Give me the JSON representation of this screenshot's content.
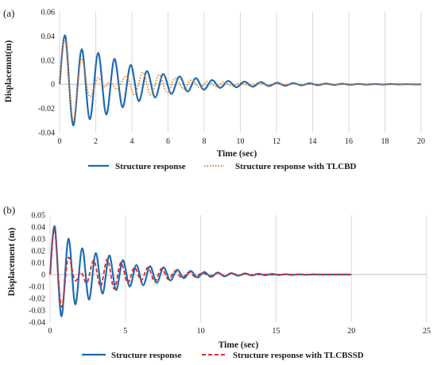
{
  "chart_data": [
    {
      "type": "line",
      "panel_label": "(a)",
      "xlabel": "Time (sec)",
      "ylabel": "Displacemnt(m)",
      "xlim": [
        0,
        20
      ],
      "ylim": [
        -0.04,
        0.06
      ],
      "x_ticks": [
        0,
        2,
        4,
        6,
        8,
        10,
        12,
        14,
        16,
        18,
        20
      ],
      "y_ticks": [
        -0.04,
        -0.02,
        0,
        0.02,
        0.04,
        0.06
      ],
      "y_tick_labels": [
        "-0.04",
        "-0.02",
        "0",
        "0.02",
        "0.04",
        "0.06"
      ],
      "grid": "vertical",
      "legend_position": "bottom",
      "series": [
        {
          "name": "Structure response",
          "color": "#1f6bb4",
          "style": "solid",
          "points": [
            [
              0,
              0
            ],
            [
              0.32,
              0.04
            ],
            [
              0.75,
              -0.034
            ],
            [
              1.22,
              0.029
            ],
            [
              1.67,
              -0.029
            ],
            [
              2.13,
              0.026
            ],
            [
              2.58,
              -0.025
            ],
            [
              3.03,
              0.021
            ],
            [
              3.48,
              -0.019
            ],
            [
              3.93,
              0.016
            ],
            [
              4.38,
              -0.014
            ],
            [
              4.83,
              0.011
            ],
            [
              5.28,
              -0.011
            ],
            [
              5.73,
              0.0085
            ],
            [
              6.18,
              -0.008
            ],
            [
              6.63,
              0.0065
            ],
            [
              7.08,
              -0.006
            ],
            [
              7.53,
              0.005
            ],
            [
              7.98,
              -0.0045
            ],
            [
              8.43,
              0.0035
            ],
            [
              8.88,
              -0.003
            ],
            [
              9.33,
              0.0028
            ],
            [
              9.78,
              -0.0025
            ],
            [
              10.23,
              0.0022
            ],
            [
              10.68,
              -0.002
            ],
            [
              11.13,
              0.0018
            ],
            [
              11.58,
              -0.0015
            ],
            [
              12.03,
              0.0013
            ],
            [
              12.48,
              -0.0012
            ],
            [
              12.93,
              0.001
            ],
            [
              13.38,
              -0.0009
            ],
            [
              13.83,
              0.0008
            ],
            [
              14.28,
              -0.0007
            ],
            [
              14.73,
              0.0006
            ],
            [
              15.18,
              -0.0005
            ],
            [
              15.63,
              0.0004
            ],
            [
              16.08,
              -0.0004
            ],
            [
              16.53,
              0.0003
            ],
            [
              16.98,
              -0.0003
            ],
            [
              17.43,
              0.0002
            ],
            [
              17.88,
              -0.0002
            ],
            [
              18.33,
              0.0002
            ],
            [
              18.78,
              -0.0001
            ],
            [
              19.23,
              0.0001
            ],
            [
              19.68,
              -0.0001
            ],
            [
              20,
              0
            ]
          ]
        },
        {
          "name": "Structure response with TLCBD",
          "color": "#f07c1b",
          "style": "dotted",
          "points": [
            [
              0,
              0
            ],
            [
              0.3,
              0.037
            ],
            [
              0.75,
              -0.03
            ],
            [
              1.2,
              0.021
            ],
            [
              1.65,
              -0.01
            ],
            [
              2.1,
              0.005
            ],
            [
              2.5,
              -0.002
            ],
            [
              2.8,
              0.002
            ],
            [
              3.2,
              -0.004
            ],
            [
              3.7,
              0.007
            ],
            [
              4.15,
              -0.009
            ],
            [
              4.6,
              0.01
            ],
            [
              5.05,
              -0.009
            ],
            [
              5.5,
              0.008
            ],
            [
              5.95,
              -0.007
            ],
            [
              6.4,
              0.005
            ],
            [
              6.85,
              -0.004
            ],
            [
              7.3,
              0.0035
            ],
            [
              7.75,
              -0.003
            ],
            [
              8.2,
              0.0025
            ],
            [
              8.65,
              -0.002
            ],
            [
              9.1,
              0.002
            ],
            [
              9.55,
              -0.0015
            ],
            [
              10.0,
              0.0012
            ],
            [
              10.5,
              -0.001
            ],
            [
              11.0,
              0.0008
            ],
            [
              11.5,
              -0.0006
            ],
            [
              12.0,
              0.0005
            ],
            [
              12.5,
              -0.0004
            ],
            [
              13.0,
              0.0003
            ],
            [
              13.5,
              -0.0002
            ],
            [
              14.0,
              0.0002
            ],
            [
              15.0,
              -0.0001
            ],
            [
              16.0,
              0.0001
            ],
            [
              17.0,
              0
            ],
            [
              20,
              0
            ]
          ]
        }
      ]
    },
    {
      "type": "line",
      "panel_label": "(b)",
      "xlabel": "Time (sec)",
      "ylabel": "Displacement (m)",
      "xlim": [
        0,
        25
      ],
      "ylim": [
        -0.04,
        0.05
      ],
      "x_ticks": [
        0,
        5,
        10,
        15,
        20,
        25
      ],
      "y_ticks": [
        -0.04,
        -0.03,
        -0.02,
        -0.01,
        0,
        0.01,
        0.02,
        0.03,
        0.04,
        0.05
      ],
      "y_tick_labels": [
        "-0.04",
        "-0.03",
        "-0.02",
        "-0.01",
        "0",
        "0.01",
        "0.02",
        "0.03",
        "0.04",
        "0.05"
      ],
      "grid": "vertical",
      "legend_position": "bottom",
      "series": [
        {
          "name": "Structure response",
          "color": "#1f6bb4",
          "style": "solid",
          "points": [
            [
              0,
              0
            ],
            [
              0.32,
              0.04
            ],
            [
              0.75,
              -0.035
            ],
            [
              1.22,
              0.03
            ],
            [
              1.67,
              -0.025
            ],
            [
              2.13,
              0.022
            ],
            [
              2.58,
              -0.021
            ],
            [
              3.03,
              0.018
            ],
            [
              3.48,
              -0.016
            ],
            [
              3.93,
              0.016
            ],
            [
              4.38,
              -0.013
            ],
            [
              4.83,
              0.012
            ],
            [
              5.28,
              -0.01
            ],
            [
              5.73,
              0.008
            ],
            [
              6.18,
              -0.009
            ],
            [
              6.63,
              0.007
            ],
            [
              7.08,
              -0.007
            ],
            [
              7.53,
              0.006
            ],
            [
              7.98,
              -0.005
            ],
            [
              8.43,
              0.004
            ],
            [
              8.88,
              -0.003
            ],
            [
              9.33,
              0.003
            ],
            [
              9.78,
              -0.0025
            ],
            [
              10.23,
              0.0022
            ],
            [
              10.68,
              -0.002
            ],
            [
              11.13,
              0.0017
            ],
            [
              11.58,
              -0.0015
            ],
            [
              12.03,
              0.0012
            ],
            [
              12.48,
              -0.001
            ],
            [
              12.93,
              0.0009
            ],
            [
              13.38,
              -0.0008
            ],
            [
              13.83,
              0.0007
            ],
            [
              14.28,
              -0.0006
            ],
            [
              14.73,
              0.0005
            ],
            [
              15.18,
              -0.0004
            ],
            [
              15.63,
              0.0003
            ],
            [
              16.08,
              -0.0003
            ],
            [
              16.53,
              0.0002
            ],
            [
              16.98,
              -0.0002
            ],
            [
              17.43,
              0.0001
            ],
            [
              18.0,
              0
            ],
            [
              20,
              0
            ]
          ]
        },
        {
          "name": "Structure response with TLCBSSD",
          "color": "#e02a2a",
          "style": "dashed",
          "points": [
            [
              0,
              0
            ],
            [
              0.3,
              0.037
            ],
            [
              0.75,
              -0.027
            ],
            [
              1.2,
              0.014
            ],
            [
              1.65,
              -0.005
            ],
            [
              2.05,
              0.002
            ],
            [
              2.45,
              -0.007
            ],
            [
              2.9,
              0.012
            ],
            [
              3.35,
              -0.01
            ],
            [
              3.8,
              0.013
            ],
            [
              4.25,
              -0.012
            ],
            [
              4.7,
              0.01
            ],
            [
              5.15,
              -0.007
            ],
            [
              5.6,
              0.006
            ],
            [
              6.05,
              -0.005
            ],
            [
              6.5,
              0.006
            ],
            [
              6.95,
              -0.006
            ],
            [
              7.4,
              0.005
            ],
            [
              7.85,
              -0.004
            ],
            [
              8.3,
              0.003
            ],
            [
              8.75,
              -0.003
            ],
            [
              9.2,
              0.002
            ],
            [
              9.65,
              -0.002
            ],
            [
              10.1,
              0.0015
            ],
            [
              10.6,
              -0.0012
            ],
            [
              11.1,
              0.0012
            ],
            [
              11.6,
              -0.001
            ],
            [
              12.1,
              0.0008
            ],
            [
              12.6,
              -0.0006
            ],
            [
              13.1,
              0.0005
            ],
            [
              13.6,
              -0.0004
            ],
            [
              14.1,
              0.0003
            ],
            [
              14.6,
              -0.0002
            ],
            [
              15.5,
              0.0001
            ],
            [
              16.5,
              0
            ],
            [
              20,
              0
            ]
          ]
        }
      ]
    }
  ]
}
